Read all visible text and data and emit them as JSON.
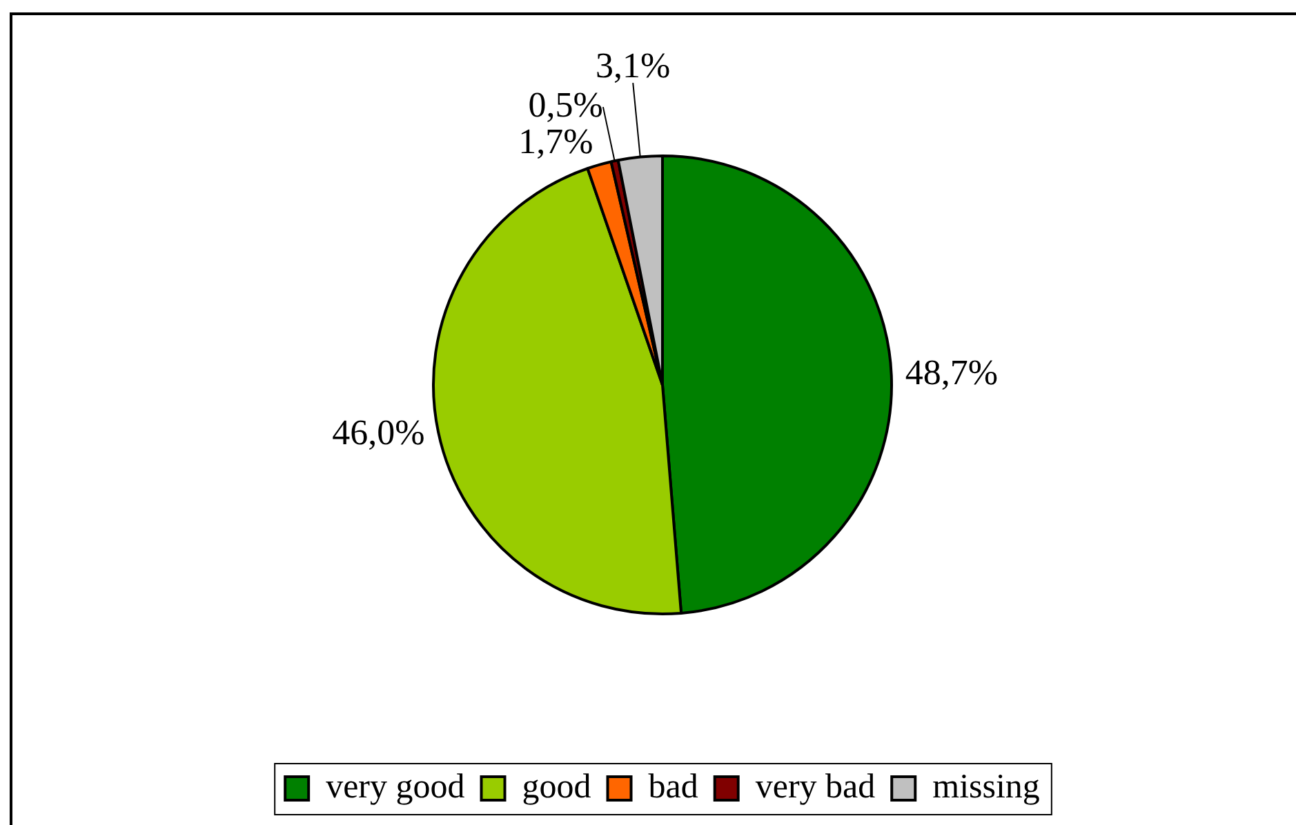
{
  "chart_data": {
    "type": "pie",
    "categories": [
      "very good",
      "good",
      "bad",
      "very bad",
      "missing"
    ],
    "values": [
      48.7,
      46.0,
      1.7,
      0.5,
      3.1
    ],
    "colors": [
      "#008000",
      "#99cc00",
      "#ff6600",
      "#800000",
      "#c0c0c0"
    ],
    "value_labels": [
      "48,7%",
      "46,0%",
      "1,7%",
      "0,5%",
      "3,1%"
    ],
    "legend": "bottom"
  }
}
